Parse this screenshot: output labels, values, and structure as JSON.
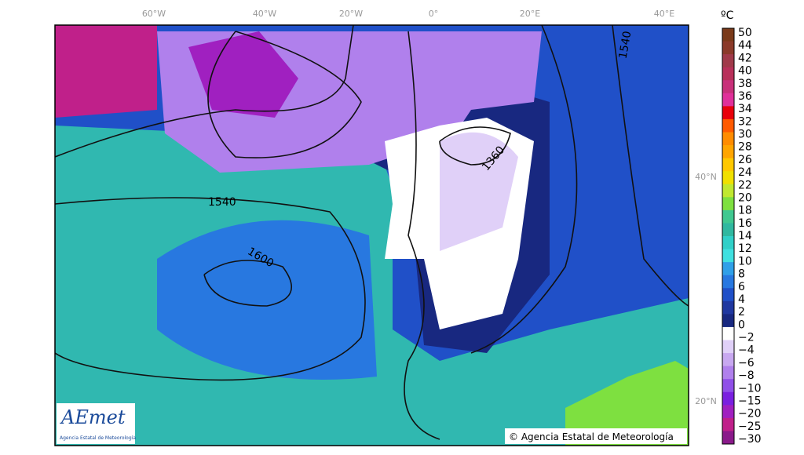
{
  "map": {
    "lon_labels": [
      "60°W",
      "40°W",
      "20°W",
      "0°",
      "20°E",
      "40°E"
    ],
    "lat_labels": [
      "40°N",
      "20°N"
    ],
    "contour_labels": [
      "1540",
      "1600",
      "1360",
      "1540"
    ],
    "logo": {
      "name": "AEmet",
      "subtitle": "Agencia Estatal de Meteorología"
    },
    "copyright": "© Agencia Estatal de Meteorología"
  },
  "colorbar": {
    "unit": "ºC",
    "labels": [
      "50",
      "44",
      "42",
      "40",
      "38",
      "36",
      "34",
      "32",
      "30",
      "28",
      "26",
      "24",
      "22",
      "20",
      "18",
      "16",
      "14",
      "12",
      "10",
      "8",
      "6",
      "4",
      "2",
      "0",
      "−2",
      "−4",
      "−6",
      "−8",
      "−10",
      "−15",
      "−20",
      "−25",
      "−30"
    ],
    "colors": [
      "#7a3a1a",
      "#8b3a2a",
      "#a03a4a",
      "#b8305a",
      "#c8307a",
      "#e0309a",
      "#e8000a",
      "#ff5a00",
      "#ff8c00",
      "#ffa500",
      "#ffc800",
      "#f0e000",
      "#c0e830",
      "#7ee040",
      "#40c890",
      "#30b8a0",
      "#30d0c8",
      "#40e0e0",
      "#30a0e8",
      "#2878e0",
      "#2050c8",
      "#2038a0",
      "#182880",
      "#ffffff",
      "#e0d0f8",
      "#c8a8f0",
      "#b080ec",
      "#9050e8",
      "#7a20e0",
      "#a020c0",
      "#c0208a",
      "#8a1a8a"
    ]
  }
}
